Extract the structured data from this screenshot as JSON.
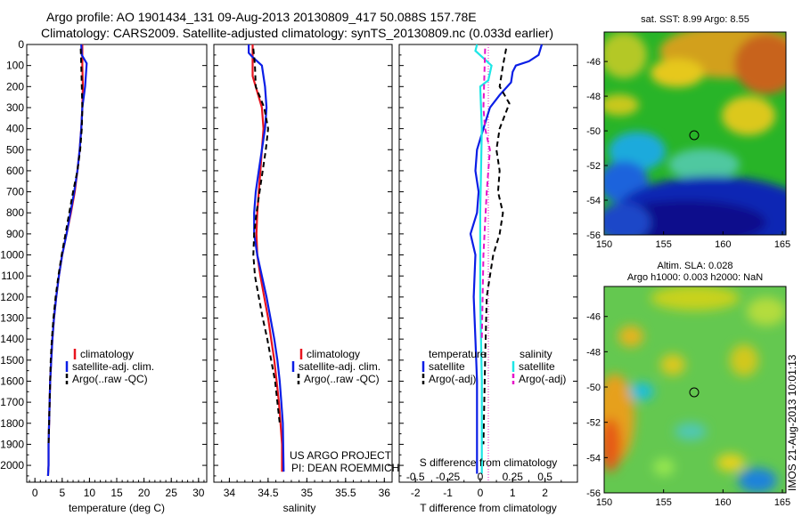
{
  "header": {
    "line1": "Argo profile: AO 1901434_131 09-Aug-2013 20130809_417 50.088S 157.78E",
    "line2": "Climatology: CARS2009. Satellite-adjusted climatology: synTS_20130809.nc (0.033d earlier)"
  },
  "colors": {
    "climatology": "#e8141e",
    "satellite": "#0a1ee6",
    "argo": "#000000",
    "satellite_s": "#1ee6e6",
    "argo_s": "#e614c8"
  },
  "icons": [
    "argo-location-circle-icon"
  ],
  "chart_data": [
    {
      "id": "temperature",
      "type": "line",
      "xlabel": "temperature (deg C)",
      "ylabel": "",
      "xlim": [
        -1.5,
        31.5
      ],
      "ylim": [
        2080,
        0
      ],
      "y_inverted": true,
      "grid": false,
      "legend_position": "lower-right",
      "xticks": [
        "0",
        "5",
        "10",
        "15",
        "20",
        "25",
        "30"
      ],
      "yticks": [
        "0",
        "100",
        "200",
        "300",
        "400",
        "500",
        "600",
        "700",
        "800",
        "900",
        "1000",
        "1100",
        "1200",
        "1300",
        "1400",
        "1500",
        "1600",
        "1700",
        "1800",
        "1900",
        "2000"
      ],
      "series": [
        {
          "name": "climatology",
          "color": "#e8141e",
          "dash": "solid",
          "x": [
            8.7,
            8.7,
            8.8,
            8.7,
            8.5,
            8.2,
            7.8,
            7.3,
            6.6,
            5.8,
            5.0,
            4.4,
            3.9,
            3.5,
            3.2,
            3.0,
            2.8,
            2.7,
            2.6,
            2.5,
            2.5,
            2.4
          ],
          "y": [
            0,
            100,
            200,
            300,
            400,
            500,
            600,
            700,
            800,
            900,
            1000,
            1100,
            1200,
            1300,
            1400,
            1500,
            1600,
            1700,
            1800,
            1900,
            2000,
            2050
          ]
        },
        {
          "name": "satellite-adj. clim.",
          "color": "#0a1ee6",
          "dash": "solid",
          "x": [
            8.5,
            8.6,
            9.5,
            9.2,
            8.7,
            8.5,
            8.2,
            7.8,
            7.2,
            6.5,
            5.8,
            5.0,
            4.4,
            3.9,
            3.5,
            3.2,
            3.0,
            2.8,
            2.7,
            2.6,
            2.5,
            2.5,
            2.4
          ],
          "y": [
            0,
            50,
            90,
            200,
            300,
            400,
            500,
            600,
            700,
            800,
            900,
            1000,
            1100,
            1200,
            1300,
            1400,
            1500,
            1600,
            1700,
            1800,
            1900,
            2000,
            2050
          ]
        },
        {
          "name": "Argo(..raw -QC)",
          "color": "#000000",
          "dash": "dashed",
          "x": [
            8.4,
            8.5,
            8.6,
            8.7,
            8.6,
            8.3,
            7.8,
            7.0,
            6.3,
            5.6,
            4.9,
            4.3,
            3.8,
            3.4,
            3.1,
            2.9,
            2.8,
            2.7,
            2.6,
            2.5
          ],
          "y": [
            20,
            100,
            200,
            300,
            400,
            500,
            600,
            700,
            800,
            900,
            1000,
            1100,
            1200,
            1300,
            1400,
            1500,
            1600,
            1700,
            1800,
            1900
          ]
        }
      ]
    },
    {
      "id": "salinity",
      "type": "line",
      "xlabel": "salinity",
      "ylabel": "",
      "xlim": [
        33.8,
        36.1
      ],
      "ylim": [
        2080,
        0
      ],
      "y_inverted": true,
      "grid": false,
      "legend_position": "lower-right",
      "xticks": [
        "34",
        "34.5",
        "35",
        "35.5",
        "36"
      ],
      "yticks": [],
      "series": [
        {
          "name": "climatology",
          "color": "#e8141e",
          "dash": "solid",
          "x": [
            34.3,
            34.3,
            34.3,
            34.38,
            34.42,
            34.44,
            34.42,
            34.4,
            34.38,
            34.36,
            34.35,
            34.36,
            34.4,
            34.45,
            34.5,
            34.54,
            34.58,
            34.61,
            34.64,
            34.66,
            34.68,
            34.68
          ],
          "y": [
            0,
            50,
            150,
            250,
            300,
            400,
            500,
            600,
            700,
            800,
            900,
            1000,
            1100,
            1200,
            1300,
            1400,
            1500,
            1600,
            1700,
            1800,
            1900,
            2030
          ]
        },
        {
          "name": "satellite-adj. clim.",
          "color": "#0a1ee6",
          "dash": "solid",
          "x": [
            34.25,
            34.25,
            34.3,
            34.42,
            34.46,
            34.48,
            34.46,
            34.42,
            34.38,
            34.34,
            34.32,
            34.32,
            34.36,
            34.42,
            34.48,
            34.53,
            34.58,
            34.62,
            34.65,
            34.67,
            34.69,
            34.7
          ],
          "y": [
            0,
            40,
            60,
            100,
            200,
            300,
            400,
            500,
            600,
            700,
            800,
            900,
            1000,
            1100,
            1200,
            1300,
            1400,
            1500,
            1600,
            1700,
            1800,
            2030
          ]
        },
        {
          "name": "Argo(..raw -QC)",
          "color": "#000000",
          "dash": "dashed",
          "x": [
            34.31,
            34.33,
            34.34,
            34.45,
            34.5,
            34.47,
            34.43,
            34.39,
            34.35,
            34.32,
            34.31,
            34.33,
            34.38,
            34.43,
            34.49,
            34.54,
            34.59,
            34.62,
            34.65
          ],
          "y": [
            20,
            100,
            200,
            300,
            400,
            500,
            600,
            700,
            800,
            900,
            1000,
            1100,
            1200,
            1300,
            1400,
            1500,
            1600,
            1700,
            1800
          ]
        }
      ]
    },
    {
      "id": "difference",
      "type": "line",
      "xlabel": "T difference from climatology",
      "xlabel2": "S difference from climatology",
      "ylabel": "",
      "xlim": [
        -2.5,
        3.0
      ],
      "ylim": [
        2080,
        0
      ],
      "y_inverted": true,
      "grid": false,
      "legend_position": "lower-right",
      "xticks": [
        "-2",
        "-1",
        "0",
        "1",
        "2"
      ],
      "xticks2": [
        "-0.5",
        "-0.25",
        "0",
        "0.25",
        "0.5"
      ],
      "legend_headers": [
        "temperature",
        "salinity"
      ],
      "yticks": [],
      "series": [
        {
          "name": "satellite",
          "group": "temperature",
          "color": "#0a1ee6",
          "dash": "solid",
          "x": [
            1.9,
            1.8,
            1.5,
            1.1,
            1.0,
            0.95,
            0.6,
            0.3,
            0.1,
            -0.1,
            -0.15,
            -0.05,
            -0.1,
            -0.3,
            -0.15,
            -0.2,
            -0.15,
            -0.1,
            -0.1,
            -0.1
          ],
          "y": [
            0,
            50,
            80,
            100,
            130,
            180,
            240,
            300,
            400,
            500,
            600,
            700,
            800,
            900,
            1000,
            1200,
            1400,
            1600,
            1800,
            2040
          ]
        },
        {
          "name": "Argo(-adj)",
          "group": "temperature",
          "color": "#000000",
          "dash": "dashed",
          "x": [
            0.8,
            0.7,
            0.6,
            0.9,
            0.6,
            0.5,
            0.6,
            0.55,
            0.7,
            0.6,
            0.4,
            0.3,
            0.2,
            0.15,
            0.1
          ],
          "y": [
            20,
            100,
            200,
            280,
            400,
            500,
            600,
            700,
            800,
            900,
            1000,
            1100,
            1200,
            1500,
            1900
          ]
        },
        {
          "name": "satellite",
          "group": "salinity",
          "color": "#1ee6e6",
          "dash": "solid",
          "x": [
            -0.1,
            -0.15,
            0.35,
            0.25,
            0.0,
            0.05,
            0.0,
            0.0,
            0.05,
            0.05
          ],
          "y": [
            0,
            30,
            100,
            170,
            200,
            400,
            800,
            1200,
            1600,
            2040
          ]
        },
        {
          "name": "Argo(-adj)",
          "group": "salinity",
          "color": "#e614c8",
          "dash": "dashed",
          "x": [
            0.15,
            0.1,
            0.15,
            0.3,
            0.2,
            0.1,
            0.05
          ],
          "y": [
            20,
            300,
            400,
            500,
            700,
            1000,
            1400
          ]
        }
      ]
    },
    {
      "id": "sst_map",
      "type": "heatmap",
      "title": "sat. SST: 8.99 Argo: 8.55",
      "xlim": [
        150,
        165.3
      ],
      "ylim": [
        -56,
        -44.3
      ],
      "xticks": [
        "150",
        "155",
        "160",
        "165"
      ],
      "yticks": [
        "-46",
        "-48",
        "-50",
        "-52",
        "-54",
        "-56"
      ],
      "argo_position": {
        "lon": 157.78,
        "lat": -50.088
      }
    },
    {
      "id": "sla_map",
      "type": "heatmap",
      "title": "Altim. SLA: 0.028",
      "subtitle": "Argo h1000: 0.003 h2000: NaN",
      "xlim": [
        150,
        165.3
      ],
      "ylim": [
        -56,
        -44.3
      ],
      "xticks": [
        "150",
        "155",
        "160",
        "165"
      ],
      "yticks": [
        "-46",
        "-48",
        "-50",
        "-52",
        "-54",
        "-56"
      ],
      "argo_position": {
        "lon": 157.78,
        "lat": -50.088
      },
      "side_label": "IMOS 21-Aug-2013 10:01:13"
    }
  ],
  "panel_text": {
    "project_line1": "US ARGO PROJECT",
    "project_line2": "PI: DEAN ROEMMICH"
  }
}
